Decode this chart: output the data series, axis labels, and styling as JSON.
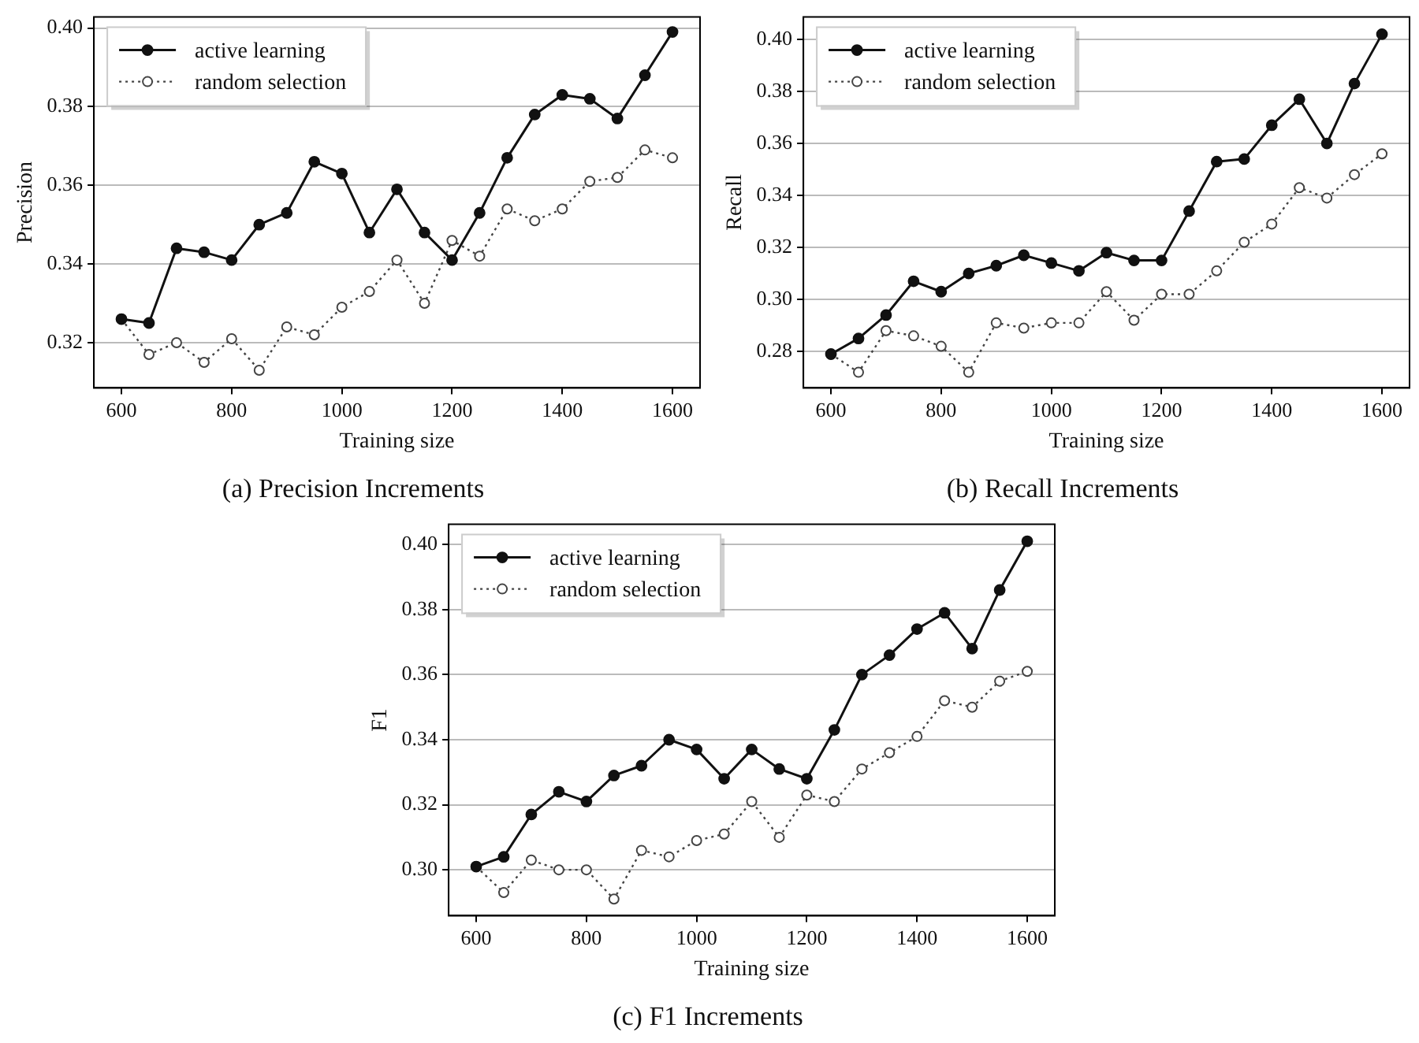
{
  "chart_data": [
    {
      "type": "line",
      "title": "(a) Precision Increments",
      "xlabel": "Training size",
      "ylabel": "Precision",
      "x": [
        600,
        650,
        700,
        750,
        800,
        850,
        900,
        950,
        1000,
        1050,
        1100,
        1150,
        1200,
        1250,
        1300,
        1350,
        1400,
        1450,
        1500,
        1550,
        1600
      ],
      "series": [
        {
          "name": "active learning",
          "color": "#111111",
          "line_style": "solid",
          "marker": "circle",
          "values": [
            0.326,
            0.325,
            0.344,
            0.343,
            0.341,
            0.35,
            0.353,
            0.366,
            0.363,
            0.348,
            0.359,
            0.348,
            0.341,
            0.353,
            0.367,
            0.378,
            0.383,
            0.382,
            0.377,
            0.388,
            0.399
          ]
        },
        {
          "name": "random selection",
          "color": "#444444",
          "line_style": "dotted",
          "marker": "circle",
          "values": [
            0.326,
            0.317,
            0.32,
            0.315,
            0.321,
            0.313,
            0.324,
            0.322,
            0.329,
            0.333,
            0.341,
            0.33,
            0.346,
            0.342,
            0.354,
            0.351,
            0.354,
            0.361,
            0.362,
            0.369,
            0.367
          ]
        }
      ],
      "xlim": [
        550,
        1650
      ],
      "xticks": [
        600,
        800,
        1000,
        1200,
        1400,
        1600
      ],
      "ylim": [
        0.3085,
        0.4028
      ],
      "yticks": [
        {
          "value": 0.32,
          "label": "0.32"
        },
        {
          "value": 0.34,
          "label": "0.34"
        },
        {
          "value": 0.36,
          "label": "0.36"
        },
        {
          "value": 0.38,
          "label": "0.38"
        },
        {
          "value": 0.4,
          "label": "0.40"
        }
      ],
      "grid": "y",
      "legend": "top left"
    },
    {
      "type": "line",
      "title": "(b) Recall Increments",
      "xlabel": "Training size",
      "ylabel": "Recall",
      "x": [
        600,
        650,
        700,
        750,
        800,
        850,
        900,
        950,
        1000,
        1050,
        1100,
        1150,
        1200,
        1250,
        1300,
        1350,
        1400,
        1450,
        1500,
        1550,
        1600
      ],
      "series": [
        {
          "name": "active learning",
          "color": "#111111",
          "line_style": "solid",
          "marker": "circle",
          "values": [
            0.279,
            0.285,
            0.294,
            0.307,
            0.303,
            0.31,
            0.313,
            0.317,
            0.314,
            0.311,
            0.318,
            0.315,
            0.315,
            0.334,
            0.353,
            0.354,
            0.367,
            0.377,
            0.36,
            0.383,
            0.402
          ]
        },
        {
          "name": "random selection",
          "color": "#444444",
          "line_style": "dotted",
          "marker": "circle",
          "values": [
            0.279,
            0.272,
            0.288,
            0.286,
            0.282,
            0.272,
            0.291,
            0.289,
            0.291,
            0.291,
            0.303,
            0.292,
            0.302,
            0.302,
            0.311,
            0.322,
            0.329,
            0.343,
            0.339,
            0.348,
            0.356
          ]
        }
      ],
      "xlim": [
        550,
        1650
      ],
      "xticks": [
        600,
        800,
        1000,
        1200,
        1400,
        1600
      ],
      "ylim": [
        0.266,
        0.4086
      ],
      "yticks": [
        {
          "value": 0.28,
          "label": "0.28"
        },
        {
          "value": 0.3,
          "label": "0.30"
        },
        {
          "value": 0.32,
          "label": "0.32"
        },
        {
          "value": 0.34,
          "label": "0.34"
        },
        {
          "value": 0.36,
          "label": "0.36"
        },
        {
          "value": 0.38,
          "label": "0.38"
        },
        {
          "value": 0.4,
          "label": "0.40"
        }
      ],
      "grid": "y",
      "legend": "top left"
    },
    {
      "type": "line",
      "title": "(c) F1 Increments",
      "xlabel": "Training size",
      "ylabel": "F1",
      "x": [
        600,
        650,
        700,
        750,
        800,
        850,
        900,
        950,
        1000,
        1050,
        1100,
        1150,
        1200,
        1250,
        1300,
        1350,
        1400,
        1450,
        1500,
        1550,
        1600
      ],
      "series": [
        {
          "name": "active learning",
          "color": "#111111",
          "line_style": "solid",
          "marker": "circle",
          "values": [
            0.301,
            0.304,
            0.317,
            0.324,
            0.321,
            0.329,
            0.332,
            0.34,
            0.337,
            0.328,
            0.337,
            0.331,
            0.328,
            0.343,
            0.36,
            0.366,
            0.374,
            0.379,
            0.368,
            0.386,
            0.401
          ]
        },
        {
          "name": "random selection",
          "color": "#444444",
          "line_style": "dotted",
          "marker": "circle",
          "values": [
            0.301,
            0.293,
            0.303,
            0.3,
            0.3,
            0.291,
            0.306,
            0.304,
            0.309,
            0.311,
            0.321,
            0.31,
            0.323,
            0.321,
            0.331,
            0.336,
            0.341,
            0.352,
            0.35,
            0.358,
            0.361
          ]
        }
      ],
      "xlim": [
        550,
        1650
      ],
      "xticks": [
        600,
        800,
        1000,
        1200,
        1400,
        1600
      ],
      "ylim": [
        0.2859,
        0.4062
      ],
      "yticks": [
        {
          "value": 0.3,
          "label": "0.30"
        },
        {
          "value": 0.32,
          "label": "0.32"
        },
        {
          "value": 0.34,
          "label": "0.34"
        },
        {
          "value": 0.36,
          "label": "0.36"
        },
        {
          "value": 0.38,
          "label": "0.38"
        },
        {
          "value": 0.4,
          "label": "0.40"
        }
      ],
      "grid": "y",
      "legend": "top left"
    }
  ]
}
